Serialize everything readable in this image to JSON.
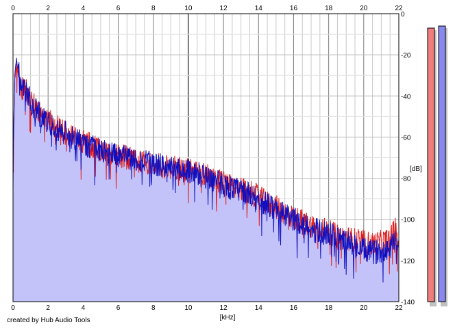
{
  "credit": "created by Hub Audio Tools",
  "chart_data": {
    "type": "area",
    "xlabel": "[kHz]",
    "ylabel": "[dB]",
    "xlim": [
      0,
      22
    ],
    "ylim": [
      -140,
      0
    ],
    "x_ticks": [
      "0",
      "2",
      "4",
      "6",
      "8",
      "10",
      "12",
      "14",
      "16",
      "18",
      "20",
      "22"
    ],
    "y_ticks": [
      "0",
      "-20",
      "-40",
      "-60",
      "-80",
      "-100",
      "-120",
      "-140"
    ],
    "grid": true,
    "colors": {
      "left_channel": "#e02020",
      "right_channel": "#1010c0",
      "area_fill": "#c3c3fa",
      "grid_major": "#7a7a7a",
      "grid_minor": "#c8c8c8",
      "meter_left": "#ee7e7e",
      "meter_right": "#8888ee"
    },
    "series": [
      {
        "channel": "left",
        "x": [
          0.0,
          0.05,
          0.1,
          0.2,
          0.3,
          0.5,
          0.8,
          1.0,
          1.5,
          2.0,
          2.5,
          3.0,
          3.5,
          4.0,
          4.5,
          5.0,
          5.5,
          6.0,
          6.5,
          7.0,
          7.5,
          8.0,
          8.5,
          9.0,
          9.5,
          10.0,
          10.5,
          11.0,
          11.5,
          12.0,
          12.5,
          13.0,
          13.5,
          14.0,
          14.5,
          15.0,
          15.5,
          16.0,
          16.5,
          17.0,
          17.5,
          18.0,
          18.5,
          19.0,
          19.5,
          20.0,
          20.5,
          21.0,
          21.5,
          21.8,
          22.0
        ],
        "y": [
          -70,
          -50,
          -32,
          -24,
          -30,
          -36,
          -38,
          -42,
          -48,
          -52,
          -55,
          -58,
          -60,
          -62,
          -64,
          -66,
          -68,
          -69,
          -70,
          -71,
          -72,
          -73,
          -74,
          -75,
          -75,
          -76,
          -77,
          -78,
          -80,
          -82,
          -84,
          -85,
          -87,
          -89,
          -92,
          -94,
          -97,
          -99,
          -101,
          -103,
          -104,
          -106,
          -108,
          -109,
          -110,
          -111,
          -112,
          -111,
          -110,
          -104,
          -112
        ]
      },
      {
        "channel": "right",
        "x": [
          0.0,
          0.05,
          0.1,
          0.2,
          0.3,
          0.5,
          0.8,
          1.0,
          1.5,
          2.0,
          2.5,
          3.0,
          3.5,
          4.0,
          4.5,
          5.0,
          5.5,
          6.0,
          6.5,
          7.0,
          7.5,
          8.0,
          8.5,
          9.0,
          9.5,
          10.0,
          10.5,
          11.0,
          11.5,
          12.0,
          12.5,
          13.0,
          13.5,
          14.0,
          14.5,
          15.0,
          15.5,
          16.0,
          16.5,
          17.0,
          17.5,
          18.0,
          18.5,
          19.0,
          19.5,
          20.0,
          20.5,
          21.0,
          21.5,
          21.8,
          22.0
        ],
        "y": [
          -72,
          -52,
          -30,
          -22,
          -28,
          -35,
          -38,
          -43,
          -49,
          -53,
          -56,
          -58,
          -61,
          -63,
          -65,
          -66,
          -68,
          -69,
          -70,
          -71,
          -72,
          -73,
          -74,
          -75,
          -76,
          -76,
          -78,
          -79,
          -81,
          -83,
          -85,
          -86,
          -88,
          -90,
          -93,
          -95,
          -98,
          -100,
          -102,
          -104,
          -106,
          -107,
          -109,
          -111,
          -113,
          -115,
          -116,
          -115,
          -114,
          -108,
          -115
        ]
      }
    ],
    "level_meter": [
      {
        "channel": "left",
        "level_db": -7
      },
      {
        "channel": "right",
        "level_db": -6
      }
    ]
  }
}
